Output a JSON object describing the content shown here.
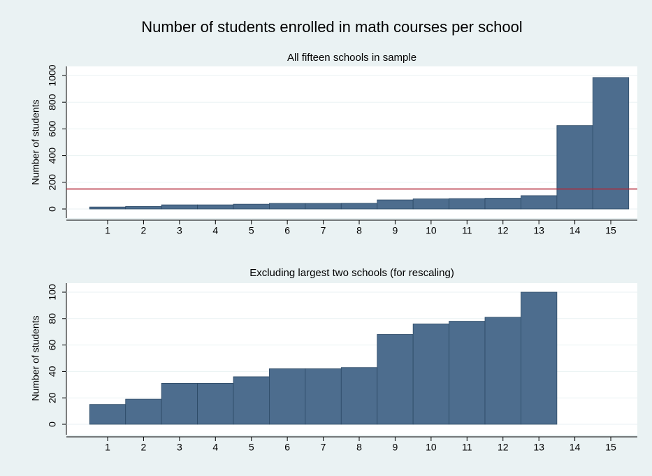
{
  "title": "Number of students enrolled in math courses per school",
  "chart_data": [
    {
      "type": "bar",
      "title": "All fifteen schools in sample",
      "ylabel": "Number of students",
      "categories": [
        "1",
        "2",
        "3",
        "4",
        "5",
        "6",
        "7",
        "8",
        "9",
        "10",
        "11",
        "12",
        "13",
        "14",
        "15"
      ],
      "values": [
        15,
        19,
        31,
        31,
        36,
        42,
        42,
        43,
        68,
        76,
        78,
        81,
        100,
        625,
        985
      ],
      "color": "#4d6d8e",
      "ylim": [
        0,
        1000
      ],
      "yticks": [
        0,
        200,
        400,
        600,
        800,
        1000
      ],
      "grid": true,
      "reference_line": 150,
      "reference_color": "#b22a3a"
    },
    {
      "type": "bar",
      "title": "Excluding largest two schools (for rescaling)",
      "ylabel": "Number of students",
      "categories": [
        "1",
        "2",
        "3",
        "4",
        "5",
        "6",
        "7",
        "8",
        "9",
        "10",
        "11",
        "12",
        "13",
        "14",
        "15"
      ],
      "values": [
        15,
        19,
        31,
        31,
        36,
        42,
        42,
        43,
        68,
        76,
        78,
        81,
        100,
        null,
        null
      ],
      "color": "#4d6d8e",
      "ylim": [
        0,
        100
      ],
      "yticks": [
        0,
        20,
        40,
        60,
        80,
        100
      ],
      "grid": true
    }
  ]
}
